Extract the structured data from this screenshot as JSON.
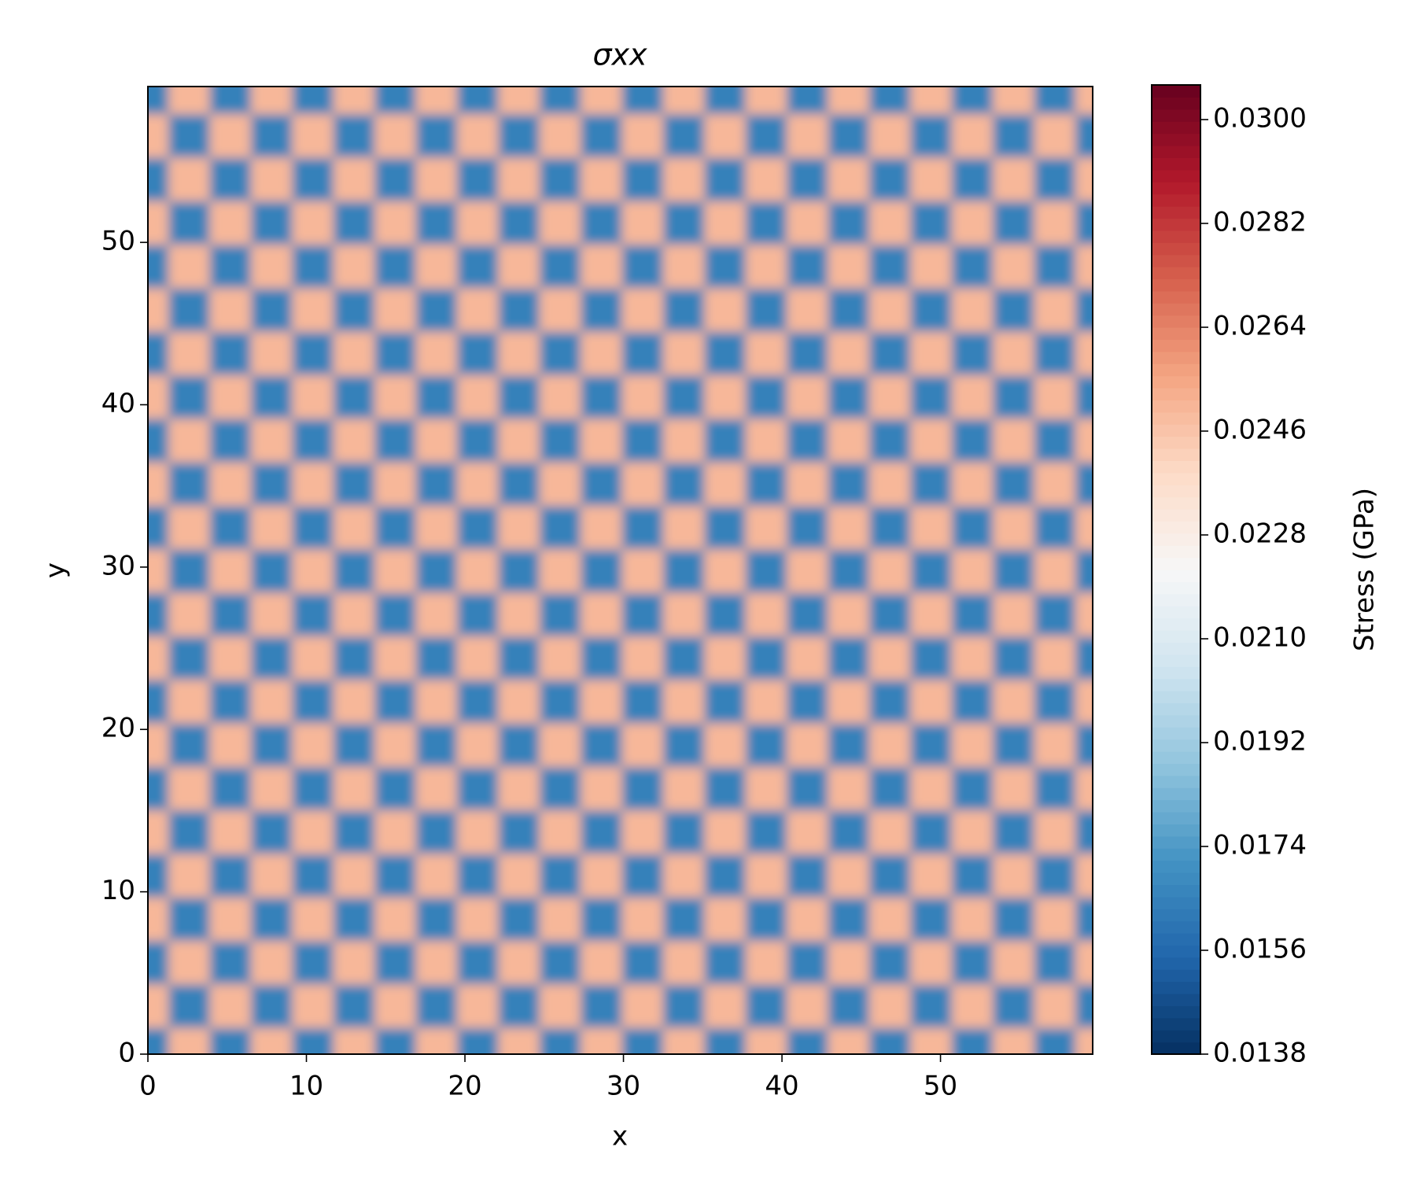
{
  "chart_data": {
    "type": "heatmap",
    "title": "σxx",
    "x_label": "x",
    "y_label": "y",
    "colorbar_label": "Stress (GPa)",
    "colormap": "RdBu_r",
    "x": [
      0,
      2.6,
      5.2,
      7.8,
      10.4,
      13,
      15.6,
      18.2,
      20.8,
      23.4,
      26,
      28.6,
      31.2,
      33.8,
      36.4,
      39,
      41.6,
      44.2,
      46.8,
      49.4,
      52,
      54.6,
      57.2,
      59.8
    ],
    "y": [
      0.3,
      2.98,
      5.66,
      8.34,
      11.02,
      13.7,
      16.38,
      19.06,
      21.74,
      24.42,
      27.1,
      29.78,
      32.46,
      35.14,
      37.82,
      40.5,
      43.18,
      45.86,
      48.54,
      51.22,
      53.9,
      56.58,
      59.26
    ],
    "z": [
      [
        0.0165,
        0.025,
        0.0165,
        0.025,
        0.0165,
        0.025,
        0.0165,
        0.025,
        0.0165,
        0.025,
        0.0165,
        0.025,
        0.0165,
        0.025,
        0.0165,
        0.025,
        0.0165,
        0.025,
        0.0165,
        0.025,
        0.0165,
        0.025,
        0.0165,
        0.025
      ],
      [
        0.025,
        0.0165,
        0.025,
        0.0165,
        0.025,
        0.0165,
        0.025,
        0.0165,
        0.025,
        0.0165,
        0.025,
        0.0165,
        0.025,
        0.0165,
        0.025,
        0.0165,
        0.025,
        0.0165,
        0.025,
        0.0165,
        0.025,
        0.0165,
        0.025,
        0.0165
      ],
      [
        0.0165,
        0.025,
        0.0165,
        0.025,
        0.0165,
        0.025,
        0.0165,
        0.025,
        0.0165,
        0.025,
        0.0165,
        0.025,
        0.0165,
        0.025,
        0.0165,
        0.025,
        0.0165,
        0.025,
        0.0165,
        0.025,
        0.0165,
        0.025,
        0.0165,
        0.025
      ],
      [
        0.025,
        0.0165,
        0.025,
        0.0165,
        0.025,
        0.0165,
        0.025,
        0.0165,
        0.025,
        0.0165,
        0.025,
        0.0165,
        0.025,
        0.0165,
        0.025,
        0.0165,
        0.025,
        0.0165,
        0.025,
        0.0165,
        0.025,
        0.0165,
        0.025,
        0.0165
      ],
      [
        0.0165,
        0.025,
        0.0165,
        0.025,
        0.0165,
        0.025,
        0.0165,
        0.025,
        0.0165,
        0.025,
        0.0165,
        0.025,
        0.0165,
        0.025,
        0.0165,
        0.025,
        0.0165,
        0.025,
        0.0165,
        0.025,
        0.0165,
        0.025,
        0.0165,
        0.025
      ],
      [
        0.025,
        0.0165,
        0.025,
        0.0165,
        0.025,
        0.0165,
        0.025,
        0.0165,
        0.025,
        0.0165,
        0.025,
        0.0165,
        0.025,
        0.0165,
        0.025,
        0.0165,
        0.025,
        0.0165,
        0.025,
        0.0165,
        0.025,
        0.0165,
        0.025,
        0.0165
      ],
      [
        0.0165,
        0.025,
        0.0165,
        0.025,
        0.0165,
        0.025,
        0.0165,
        0.025,
        0.0165,
        0.025,
        0.0165,
        0.025,
        0.0165,
        0.025,
        0.0165,
        0.025,
        0.0165,
        0.025,
        0.0165,
        0.025,
        0.0165,
        0.025,
        0.0165,
        0.025
      ],
      [
        0.025,
        0.0165,
        0.025,
        0.0165,
        0.025,
        0.0165,
        0.025,
        0.0165,
        0.025,
        0.0165,
        0.025,
        0.0165,
        0.025,
        0.0165,
        0.025,
        0.0165,
        0.025,
        0.0165,
        0.025,
        0.0165,
        0.025,
        0.0165,
        0.025,
        0.0165
      ],
      [
        0.0165,
        0.025,
        0.0165,
        0.025,
        0.0165,
        0.025,
        0.0165,
        0.025,
        0.0165,
        0.025,
        0.0165,
        0.025,
        0.0165,
        0.025,
        0.0165,
        0.025,
        0.0165,
        0.025,
        0.0165,
        0.025,
        0.0165,
        0.025,
        0.0165,
        0.025
      ],
      [
        0.025,
        0.0165,
        0.025,
        0.0165,
        0.025,
        0.0165,
        0.025,
        0.0165,
        0.025,
        0.0165,
        0.025,
        0.0165,
        0.025,
        0.0165,
        0.025,
        0.0165,
        0.025,
        0.0165,
        0.025,
        0.0165,
        0.025,
        0.0165,
        0.025,
        0.0165
      ],
      [
        0.0165,
        0.025,
        0.0165,
        0.025,
        0.0165,
        0.025,
        0.0165,
        0.025,
        0.0165,
        0.025,
        0.0165,
        0.025,
        0.0165,
        0.025,
        0.0165,
        0.025,
        0.0165,
        0.025,
        0.0165,
        0.025,
        0.0165,
        0.025,
        0.0165,
        0.025
      ],
      [
        0.025,
        0.0165,
        0.025,
        0.0165,
        0.025,
        0.0165,
        0.025,
        0.0165,
        0.025,
        0.0165,
        0.025,
        0.0165,
        0.025,
        0.0165,
        0.025,
        0.0165,
        0.025,
        0.0165,
        0.025,
        0.0165,
        0.025,
        0.0165,
        0.025,
        0.0165
      ],
      [
        0.0165,
        0.025,
        0.0165,
        0.025,
        0.0165,
        0.025,
        0.0165,
        0.025,
        0.0165,
        0.025,
        0.0165,
        0.025,
        0.0165,
        0.025,
        0.0165,
        0.025,
        0.0165,
        0.025,
        0.0165,
        0.025,
        0.0165,
        0.025,
        0.0165,
        0.025
      ],
      [
        0.025,
        0.0165,
        0.025,
        0.0165,
        0.025,
        0.0165,
        0.025,
        0.0165,
        0.025,
        0.0165,
        0.025,
        0.0165,
        0.025,
        0.0165,
        0.025,
        0.0165,
        0.025,
        0.0165,
        0.025,
        0.0165,
        0.025,
        0.0165,
        0.025,
        0.0165
      ],
      [
        0.0165,
        0.025,
        0.0165,
        0.025,
        0.0165,
        0.025,
        0.0165,
        0.025,
        0.0165,
        0.025,
        0.0165,
        0.025,
        0.0165,
        0.025,
        0.0165,
        0.025,
        0.0165,
        0.025,
        0.0165,
        0.025,
        0.0165,
        0.025,
        0.0165,
        0.025
      ],
      [
        0.025,
        0.0165,
        0.025,
        0.0165,
        0.025,
        0.0165,
        0.025,
        0.0165,
        0.025,
        0.0165,
        0.025,
        0.0165,
        0.025,
        0.0165,
        0.025,
        0.0165,
        0.025,
        0.0165,
        0.025,
        0.0165,
        0.025,
        0.0165,
        0.025,
        0.0165
      ],
      [
        0.0165,
        0.025,
        0.0165,
        0.025,
        0.0165,
        0.025,
        0.0165,
        0.025,
        0.0165,
        0.025,
        0.0165,
        0.025,
        0.0165,
        0.025,
        0.0165,
        0.025,
        0.0165,
        0.025,
        0.0165,
        0.025,
        0.0165,
        0.025,
        0.0165,
        0.025
      ],
      [
        0.025,
        0.0165,
        0.025,
        0.0165,
        0.025,
        0.0165,
        0.025,
        0.0165,
        0.025,
        0.0165,
        0.025,
        0.0165,
        0.025,
        0.0165,
        0.025,
        0.0165,
        0.025,
        0.0165,
        0.025,
        0.0165,
        0.025,
        0.0165,
        0.025,
        0.0165
      ],
      [
        0.0165,
        0.025,
        0.0165,
        0.025,
        0.0165,
        0.025,
        0.0165,
        0.025,
        0.0165,
        0.025,
        0.0165,
        0.025,
        0.0165,
        0.025,
        0.0165,
        0.025,
        0.0165,
        0.025,
        0.0165,
        0.025,
        0.0165,
        0.025,
        0.0165,
        0.025
      ],
      [
        0.025,
        0.0165,
        0.025,
        0.0165,
        0.025,
        0.0165,
        0.025,
        0.0165,
        0.025,
        0.0165,
        0.025,
        0.0165,
        0.025,
        0.0165,
        0.025,
        0.0165,
        0.025,
        0.0165,
        0.025,
        0.0165,
        0.025,
        0.0165,
        0.025,
        0.0165
      ],
      [
        0.0165,
        0.025,
        0.0165,
        0.025,
        0.0165,
        0.025,
        0.0165,
        0.025,
        0.0165,
        0.025,
        0.0165,
        0.025,
        0.0165,
        0.025,
        0.0165,
        0.025,
        0.0165,
        0.025,
        0.0165,
        0.025,
        0.0165,
        0.025,
        0.0165,
        0.025
      ],
      [
        0.025,
        0.0165,
        0.025,
        0.0165,
        0.025,
        0.0165,
        0.025,
        0.0165,
        0.025,
        0.0165,
        0.025,
        0.0165,
        0.025,
        0.0165,
        0.025,
        0.0165,
        0.025,
        0.0165,
        0.025,
        0.0165,
        0.025,
        0.0165,
        0.025,
        0.0165
      ],
      [
        0.0165,
        0.025,
        0.0165,
        0.025,
        0.0165,
        0.025,
        0.0165,
        0.025,
        0.0165,
        0.025,
        0.0165,
        0.025,
        0.0165,
        0.025,
        0.0165,
        0.025,
        0.0165,
        0.025,
        0.0165,
        0.025,
        0.0165,
        0.025,
        0.0165,
        0.025
      ]
    ],
    "xlim": [
      0,
      59.6
    ],
    "ylim": [
      0,
      59.6
    ],
    "xticks": [
      0,
      10,
      20,
      30,
      40,
      50
    ],
    "yticks": [
      0,
      10,
      20,
      30,
      40,
      50
    ],
    "clim": [
      0.0138,
      0.0306
    ],
    "cticks": [
      0.0138,
      0.0156,
      0.0174,
      0.0192,
      {
        "value": 0.021,
        "label": "0.0210"
      },
      0.0228,
      0.0246,
      0.0264,
      0.0282,
      {
        "value": 0.03,
        "label": "0.0300"
      }
    ]
  }
}
